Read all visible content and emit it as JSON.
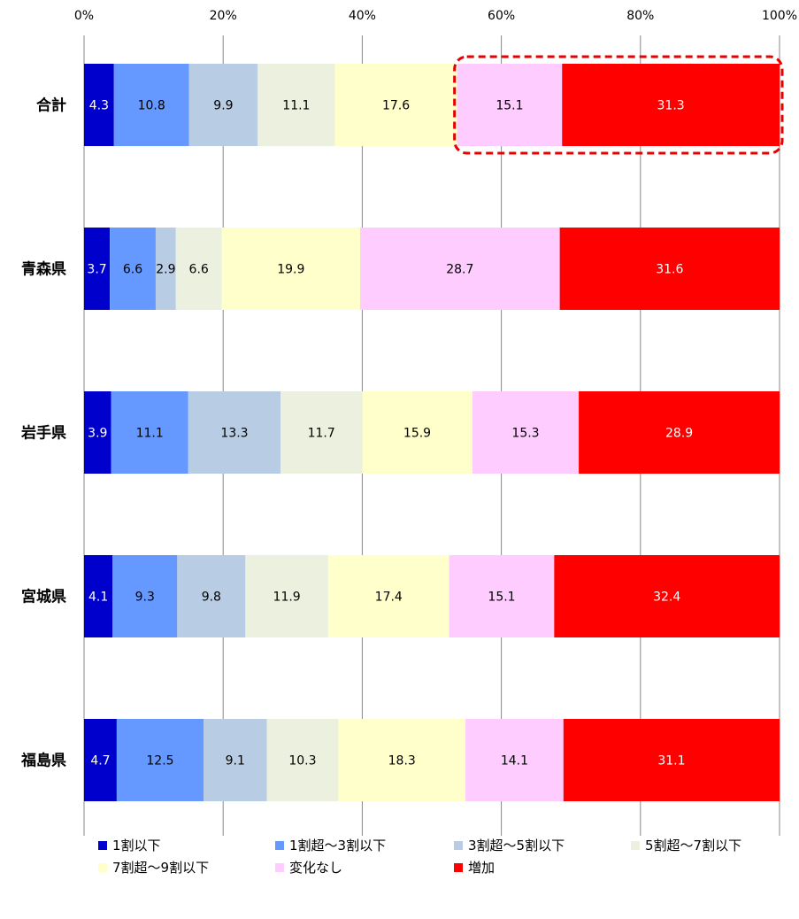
{
  "chart_data": {
    "type": "bar",
    "orientation": "horizontal",
    "stacked": "percent",
    "categories": [
      "合計",
      "青森県",
      "岩手県",
      "宮城県",
      "福島県"
    ],
    "series": [
      {
        "name": "1割以下",
        "color": "#0000cc",
        "values": [
          4.3,
          3.7,
          3.9,
          4.1,
          4.7
        ]
      },
      {
        "name": "1割超～3割以下",
        "color": "#6699ff",
        "values": [
          10.8,
          6.6,
          11.1,
          9.3,
          12.5
        ]
      },
      {
        "name": "3割超～5割以下",
        "color": "#b8cce4",
        "values": [
          9.9,
          2.9,
          13.3,
          9.8,
          9.1
        ]
      },
      {
        "name": "5割超～7割以下",
        "color": "#ebf1de",
        "values": [
          11.1,
          6.6,
          11.7,
          11.9,
          10.3
        ]
      },
      {
        "name": "7割超～9割以下",
        "color": "#ffffcc",
        "values": [
          17.6,
          19.9,
          15.9,
          17.4,
          18.3
        ]
      },
      {
        "name": "変化なし",
        "color": "#ffccff",
        "values": [
          15.1,
          28.7,
          15.3,
          15.1,
          14.1
        ]
      },
      {
        "name": "増加",
        "color": "#ff0000",
        "values": [
          31.3,
          31.6,
          28.9,
          32.4,
          31.1
        ]
      }
    ],
    "x_ticks": [
      "0%",
      "20%",
      "40%",
      "60%",
      "80%",
      "100%"
    ],
    "xlim": [
      0,
      100
    ],
    "grid": true,
    "legend_position": "bottom",
    "highlight": {
      "category": "合計",
      "series": [
        "変化なし",
        "増加"
      ],
      "color": "#e60000",
      "style": "dashed"
    }
  }
}
